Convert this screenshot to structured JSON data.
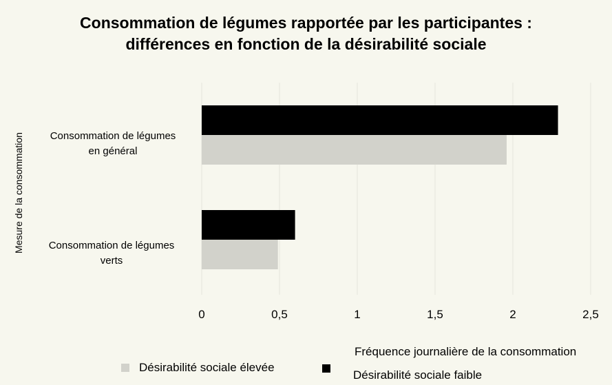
{
  "chart_data": {
    "type": "bar",
    "orientation": "horizontal",
    "title": [
      "Consommation de légumes rapportée par les participantes :",
      "différences en fonction de la désirabilité sociale"
    ],
    "xlabel": "Fréquence journalière de la consommation",
    "ylabel": "Mesure de la consommation",
    "categories": [
      [
        "Consommation de légumes",
        "en général"
      ],
      [
        "Consommation de légumes",
        "verts"
      ]
    ],
    "series": [
      {
        "name": "Désirabilité sociale faible",
        "color": "#000000",
        "values": [
          2.29,
          0.6
        ]
      },
      {
        "name": "Désirabilité sociale élevée",
        "color": "#d2d2cb",
        "values": [
          1.96,
          0.49
        ]
      }
    ],
    "xlim": [
      0,
      2.5
    ],
    "xticks": [
      "0",
      "0,5",
      "1",
      "1,5",
      "2",
      "2,5"
    ],
    "grid": true,
    "legend_position": "bottom"
  }
}
